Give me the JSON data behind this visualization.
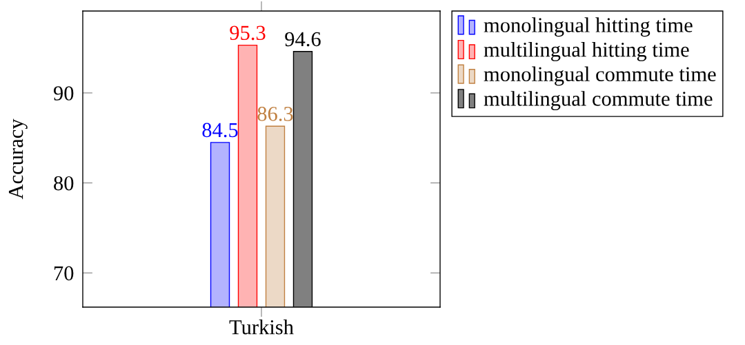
{
  "chart_data": {
    "type": "bar",
    "ylabel": "Accuracy",
    "categories": [
      "Turkish"
    ],
    "series": [
      {
        "name": "monolingual hitting time",
        "color": "#b3b3ff",
        "values": [
          84.5
        ]
      },
      {
        "name": "multilingual hitting time",
        "color": "#ffb3b3",
        "values": [
          95.3
        ]
      },
      {
        "name": "monolingual commute time",
        "color": "#ecd9c6",
        "values": [
          86.3
        ]
      },
      {
        "name": "multilingual commute time",
        "color": "#808080",
        "values": [
          94.6
        ]
      }
    ],
    "ylim": [
      66.2,
      99.1
    ],
    "yticks": [
      70,
      80,
      90
    ],
    "data_labels": true,
    "legend": "right"
  }
}
